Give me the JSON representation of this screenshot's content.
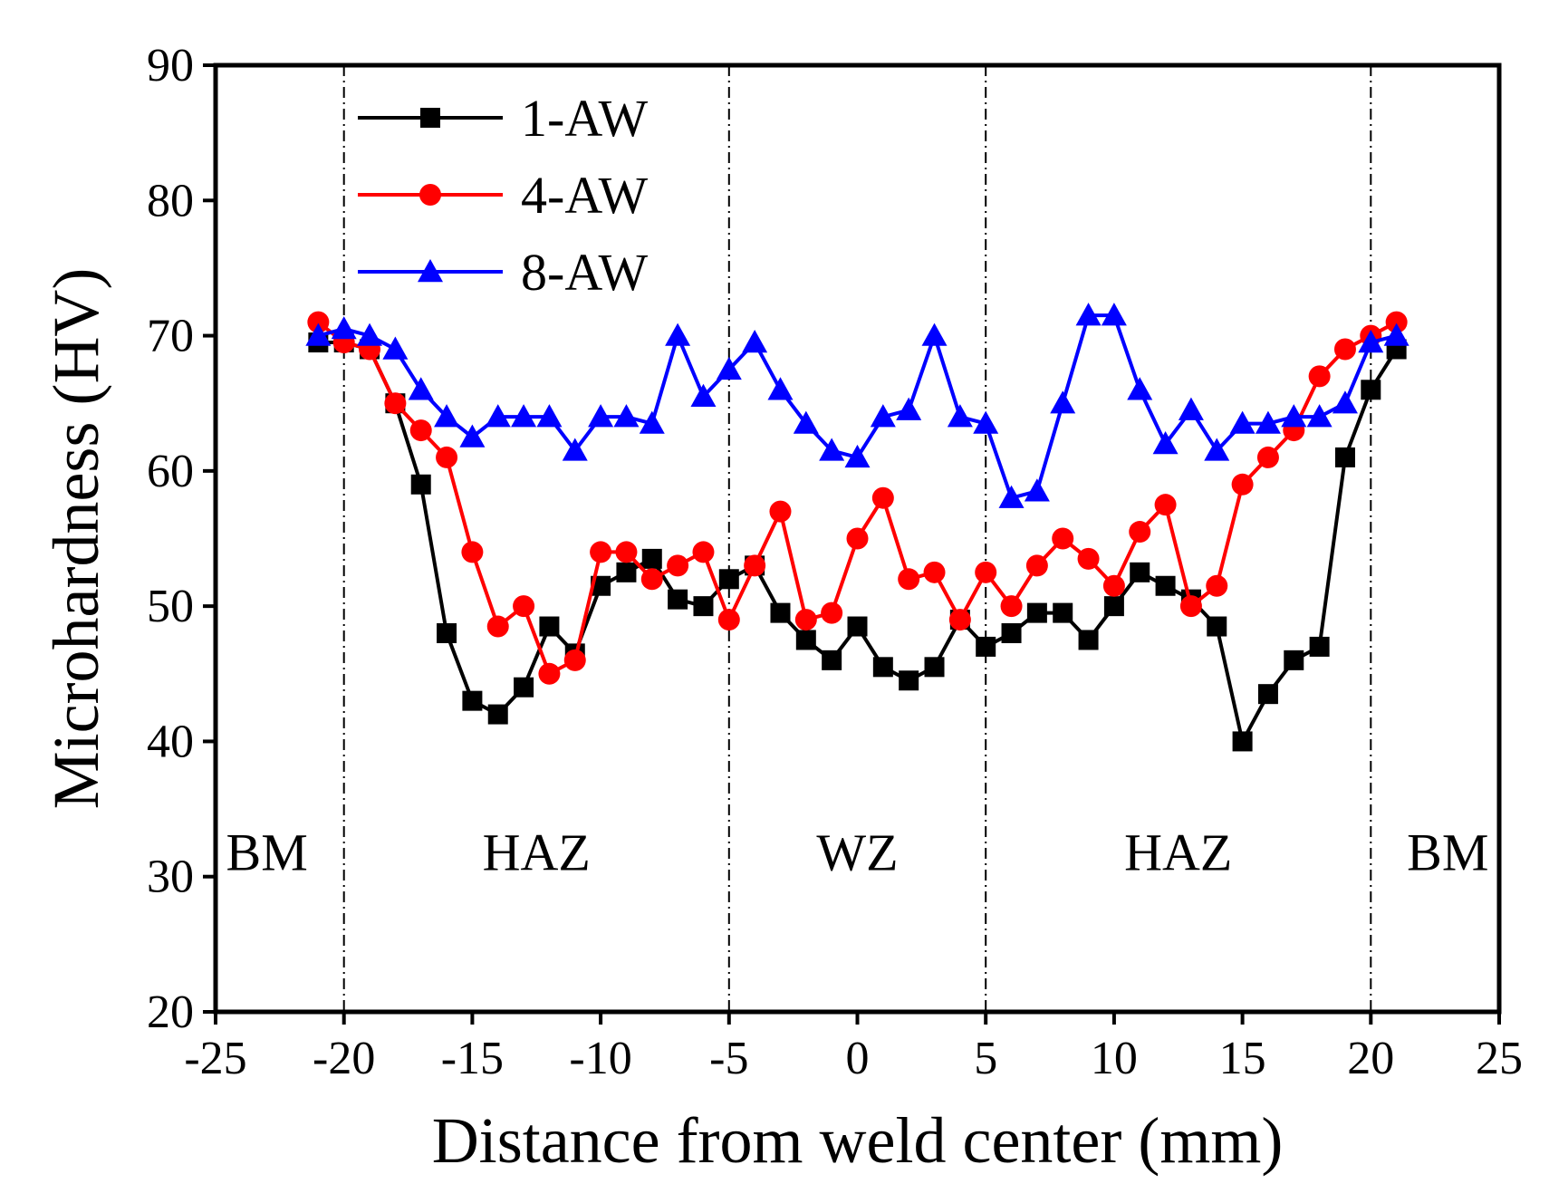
{
  "chart_data": {
    "type": "line",
    "xlabel": "Distance from weld center (mm)",
    "ylabel": "Microhardness (HV)",
    "xlim": [
      -25,
      25
    ],
    "ylim": [
      20,
      90
    ],
    "xticks": [
      -25,
      -20,
      -15,
      -10,
      -5,
      0,
      5,
      10,
      15,
      20,
      25
    ],
    "yticks": [
      20,
      30,
      40,
      50,
      60,
      70,
      80,
      90
    ],
    "xtick_labels": [
      "-25",
      "-20",
      "-15",
      "-10",
      "-5",
      "0",
      "5",
      "10",
      "15",
      "20",
      "25"
    ],
    "ytick_labels": [
      "20",
      "30",
      "40",
      "50",
      "60",
      "70",
      "80",
      "90"
    ],
    "region_boundaries": [
      -20,
      -5,
      5,
      20
    ],
    "regions": [
      {
        "label": "BM",
        "x": -23
      },
      {
        "label": "HAZ",
        "x": -12.5
      },
      {
        "label": "WZ",
        "x": 0
      },
      {
        "label": "HAZ",
        "x": 12.5
      },
      {
        "label": "BM",
        "x": 23
      }
    ],
    "legend_position": "top-left",
    "x": [
      -21,
      -20,
      -19,
      -18,
      -17,
      -16,
      -15,
      -14,
      -13,
      -12,
      -11,
      -10,
      -9,
      -8,
      -7,
      -6,
      -5,
      -4,
      -3,
      -2,
      -1,
      0,
      1,
      2,
      3,
      4,
      5,
      6,
      7,
      8,
      9,
      10,
      11,
      12,
      13,
      14,
      15,
      16,
      17,
      18,
      19,
      20,
      21
    ],
    "series": [
      {
        "name": "1-AW",
        "color": "#000000",
        "marker": "square",
        "values": [
          69.5,
          69.5,
          69,
          65,
          59,
          48,
          43,
          42,
          44,
          48.5,
          46.5,
          51.5,
          52.5,
          53.5,
          50.5,
          50,
          52,
          53,
          49.5,
          47.5,
          46,
          48.5,
          45.5,
          44.5,
          45.5,
          49,
          47,
          48,
          49.5,
          49.5,
          47.5,
          50,
          52.5,
          51.5,
          50.5,
          48.5,
          40,
          43.5,
          46,
          47,
          61,
          66,
          69
        ]
      },
      {
        "name": "4-AW",
        "color": "#ff0000",
        "marker": "circle",
        "values": [
          71,
          69.5,
          69,
          65,
          63,
          61,
          54,
          48.5,
          50,
          45,
          46,
          54,
          54,
          52,
          53,
          54,
          49,
          53,
          57,
          49,
          49.5,
          55,
          58,
          52,
          52.5,
          49,
          52.5,
          50,
          53,
          55,
          53.5,
          51.5,
          55.5,
          57.5,
          50,
          51.5,
          59,
          61,
          63,
          67,
          69,
          70,
          71
        ]
      },
      {
        "name": "8-AW",
        "color": "#0000ff",
        "marker": "triangle",
        "values": [
          70,
          70.5,
          70,
          69,
          66,
          64,
          62.5,
          64,
          64,
          64,
          61.5,
          64,
          64,
          63.5,
          70,
          65.5,
          67.5,
          69.5,
          66,
          63.5,
          61.5,
          61,
          64,
          64.5,
          70,
          64,
          63.5,
          58,
          58.5,
          65,
          71.5,
          71.5,
          66,
          62,
          64.5,
          61.5,
          63.5,
          63.5,
          64,
          64,
          65,
          69.5,
          70
        ]
      }
    ]
  }
}
